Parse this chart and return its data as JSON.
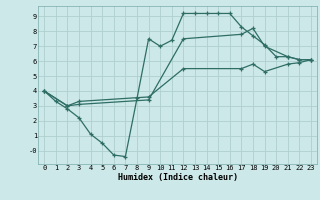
{
  "title": "",
  "xlabel": "Humidex (Indice chaleur)",
  "ylabel": "",
  "bg_color": "#cde8e8",
  "grid_color": "#afd0d0",
  "line_color": "#2e6e65",
  "xlim": [
    -0.5,
    23.5
  ],
  "ylim": [
    -0.9,
    9.7
  ],
  "xticks": [
    0,
    1,
    2,
    3,
    4,
    5,
    6,
    7,
    8,
    9,
    10,
    11,
    12,
    13,
    14,
    15,
    16,
    17,
    18,
    19,
    20,
    21,
    22,
    23
  ],
  "yticks": [
    0,
    1,
    2,
    3,
    4,
    5,
    6,
    7,
    8,
    9
  ],
  "ytick_labels": [
    "-0",
    "1",
    "2",
    "3",
    "4",
    "5",
    "6",
    "7",
    "8",
    "9"
  ],
  "curve1_x": [
    0,
    1,
    2,
    3,
    4,
    5,
    6,
    7,
    8,
    9,
    10,
    11,
    12,
    13,
    14,
    15,
    16,
    17,
    18,
    19,
    20,
    21,
    22,
    23
  ],
  "curve1_y": [
    4.0,
    3.3,
    2.8,
    2.2,
    1.1,
    0.5,
    -0.3,
    -0.4,
    3.5,
    7.5,
    7.0,
    7.4,
    9.2,
    9.2,
    9.2,
    9.2,
    9.2,
    8.3,
    7.7,
    7.1,
    6.3,
    6.3,
    6.1,
    6.1
  ],
  "curve2_x": [
    0,
    2,
    3,
    9,
    12,
    17,
    18,
    19,
    21,
    22,
    23
  ],
  "curve2_y": [
    4.0,
    3.0,
    3.1,
    3.4,
    7.5,
    7.8,
    8.2,
    7.0,
    6.3,
    6.1,
    6.1
  ],
  "curve3_x": [
    0,
    2,
    3,
    9,
    12,
    17,
    18,
    19,
    21,
    22,
    23
  ],
  "curve3_y": [
    4.0,
    3.0,
    3.3,
    3.6,
    5.5,
    5.5,
    5.8,
    5.3,
    5.8,
    5.9,
    6.1
  ]
}
